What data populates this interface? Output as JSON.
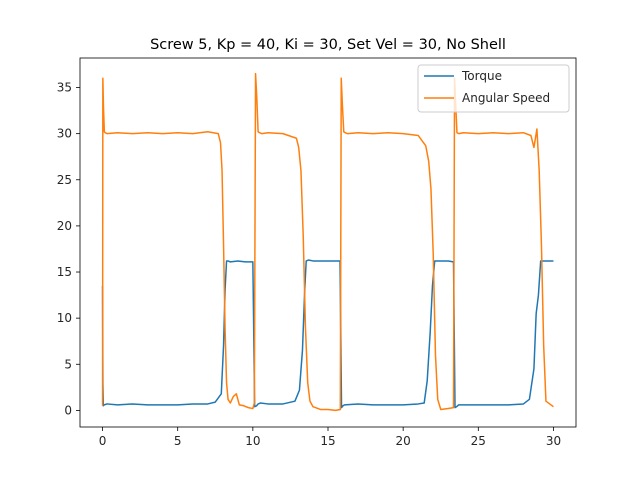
{
  "chart_data": {
    "type": "line",
    "title": "Screw 5, Kp = 40, Ki = 30, Set Vel = 30, No Shell",
    "xlabel": "",
    "ylabel": "",
    "xlim": [
      -1.5,
      31.5
    ],
    "ylim": [
      -1.8,
      38.2
    ],
    "xticks": [
      0,
      5,
      10,
      15,
      20,
      25,
      30
    ],
    "yticks": [
      0,
      5,
      10,
      15,
      20,
      25,
      30,
      35
    ],
    "legend_position": "top-right",
    "grid": false,
    "series": [
      {
        "name": "Torque",
        "color": "#1f77b4",
        "x": [
          0.0,
          0.02,
          0.05,
          0.1,
          0.3,
          1,
          2,
          3,
          4,
          5,
          6,
          7,
          7.5,
          7.9,
          8.05,
          8.15,
          8.25,
          8.35,
          8.5,
          9,
          9.5,
          10.0,
          10.12,
          10.25,
          10.35,
          10.5,
          11,
          12,
          12.8,
          13.1,
          13.3,
          13.45,
          13.55,
          13.7,
          14,
          15,
          15.8,
          15.9,
          16.0,
          16.1,
          17,
          18,
          19,
          20,
          21,
          21.4,
          21.6,
          21.8,
          21.95,
          22.1,
          22.5,
          23,
          23.35,
          23.45,
          23.55,
          23.7,
          24,
          25,
          26,
          27,
          28,
          28.4,
          28.7,
          28.85,
          29.0,
          29.15,
          29.5,
          30.0
        ],
        "y": [
          13.5,
          3.0,
          0.5,
          0.6,
          0.7,
          0.6,
          0.7,
          0.6,
          0.6,
          0.6,
          0.7,
          0.7,
          0.9,
          1.8,
          7.0,
          13.0,
          16.2,
          16.2,
          16.1,
          16.2,
          16.1,
          16.1,
          0.4,
          0.5,
          0.7,
          0.8,
          0.7,
          0.7,
          1.0,
          2.2,
          6.5,
          13.0,
          16.2,
          16.3,
          16.2,
          16.2,
          16.2,
          0.3,
          0.5,
          0.6,
          0.7,
          0.6,
          0.6,
          0.6,
          0.7,
          0.8,
          3.2,
          8.5,
          13.5,
          16.2,
          16.2,
          16.2,
          16.1,
          0.3,
          0.4,
          0.6,
          0.6,
          0.6,
          0.6,
          0.6,
          0.7,
          1.2,
          4.5,
          10.5,
          12.5,
          16.2,
          16.2,
          16.2
        ]
      },
      {
        "name": "Angular Speed",
        "color": "#ff7f0e",
        "x": [
          0.0,
          0.02,
          0.06,
          0.12,
          0.18,
          0.3,
          1,
          2,
          3,
          4,
          5,
          6,
          7,
          7.7,
          7.85,
          7.95,
          8.05,
          8.15,
          8.25,
          8.35,
          8.5,
          8.7,
          8.9,
          9.1,
          9.4,
          9.7,
          10.0,
          10.1,
          10.18,
          10.26,
          10.35,
          10.45,
          10.6,
          11,
          12,
          12.9,
          13.05,
          13.2,
          13.35,
          13.5,
          13.65,
          13.8,
          14.0,
          14.5,
          15.0,
          15.5,
          15.82,
          15.88,
          15.96,
          16.05,
          16.15,
          16.3,
          17,
          18,
          19,
          20,
          21,
          21.5,
          21.7,
          21.85,
          22.0,
          22.15,
          22.3,
          22.5,
          23.0,
          23.35,
          23.42,
          23.5,
          23.58,
          23.7,
          24,
          25,
          26,
          27,
          28,
          28.5,
          28.7,
          28.9,
          29.05,
          29.2,
          29.35,
          29.5,
          30.0
        ],
        "y": [
          0.5,
          36.0,
          33.0,
          30.2,
          30.1,
          30.0,
          30.1,
          30.0,
          30.1,
          30.0,
          30.1,
          30.0,
          30.2,
          30.0,
          29.0,
          26.0,
          18.0,
          9.0,
          3.0,
          1.2,
          0.8,
          1.5,
          1.8,
          0.6,
          0.5,
          0.3,
          0.2,
          0.8,
          36.5,
          34.0,
          30.2,
          30.1,
          30.0,
          30.1,
          30.0,
          29.5,
          28.5,
          26.0,
          19.0,
          9.0,
          3.0,
          1.0,
          0.4,
          0.1,
          0.1,
          0.0,
          0.1,
          36.0,
          33.0,
          30.2,
          30.1,
          30.0,
          30.1,
          30.0,
          30.1,
          30.0,
          29.8,
          28.7,
          27.0,
          24.0,
          17.0,
          6.0,
          1.2,
          0.1,
          0.2,
          0.3,
          36.0,
          33.0,
          30.1,
          30.0,
          30.1,
          30.0,
          30.1,
          30.0,
          30.1,
          29.8,
          28.5,
          30.5,
          26.0,
          18.0,
          7.0,
          1.0,
          0.4
        ]
      }
    ]
  }
}
